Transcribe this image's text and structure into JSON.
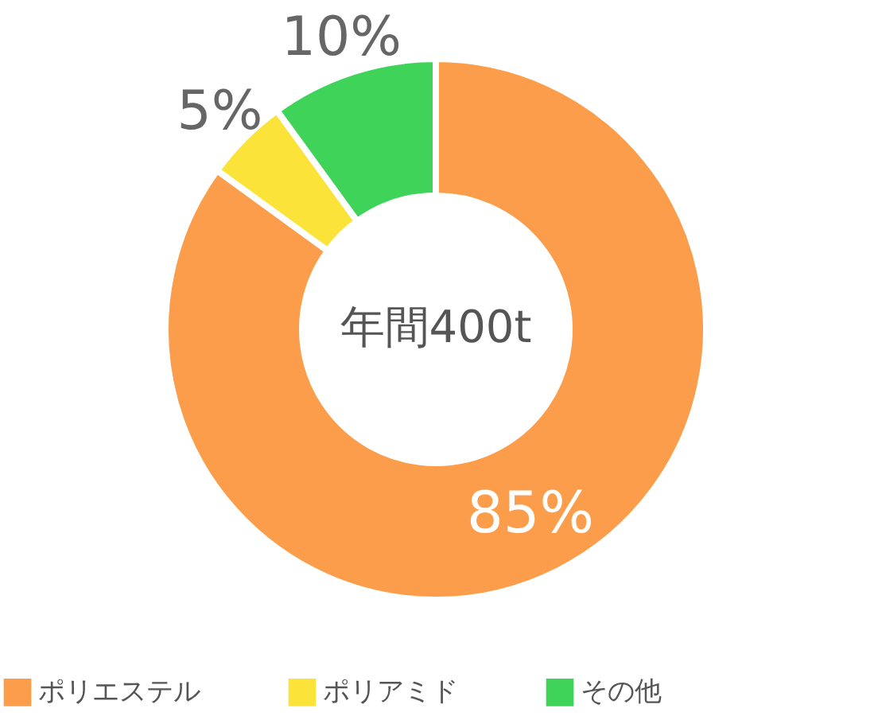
{
  "chart_data": {
    "type": "donut",
    "categories": [
      "ポリエステル",
      "ポリアミド",
      "その他"
    ],
    "values": [
      85,
      5,
      10
    ],
    "colors": [
      "#fb9d4a",
      "#fbe33a",
      "#3fd35a"
    ],
    "value_labels": [
      "85%",
      "5%",
      "10%"
    ],
    "annotations": [
      "年間400t"
    ],
    "legend": "bottom"
  }
}
